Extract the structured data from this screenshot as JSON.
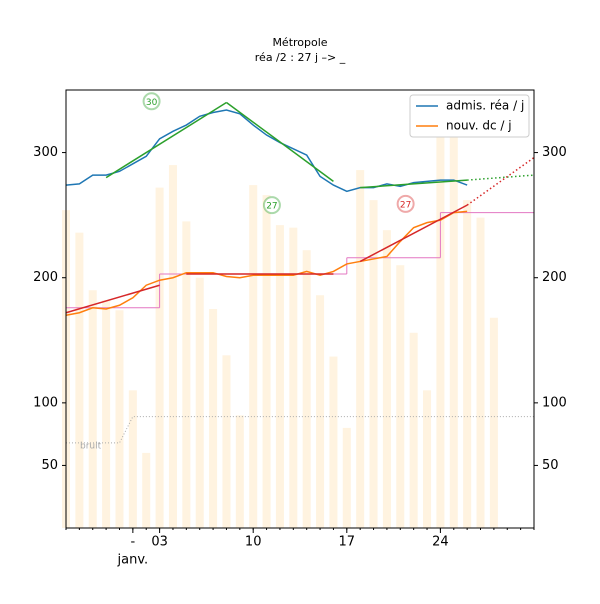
{
  "chart_data": {
    "type": "line",
    "title": "Métropole",
    "subtitle": "réa /2 : 27 j –> _",
    "xlim": [
      -4,
      31
    ],
    "ylim": [
      0,
      350
    ],
    "xticks": [
      {
        "value": 1,
        "label": "-"
      },
      {
        "value": 3,
        "label": "03"
      },
      10,
      17,
      24
    ],
    "x_sublabel": "janv.",
    "yticks": [
      50,
      100,
      200,
      300
    ],
    "y2ticks": [
      50,
      100,
      200,
      300
    ],
    "legend": "upper right",
    "x": [
      -4,
      -3,
      -2,
      -1,
      0,
      1,
      2,
      3,
      4,
      5,
      6,
      7,
      8,
      9,
      10,
      11,
      12,
      13,
      14,
      15,
      16,
      17,
      18,
      19,
      20,
      21,
      22,
      23,
      24,
      25,
      26
    ],
    "series": [
      {
        "name": "admis. réa / j",
        "color": "#1f77b4",
        "values": [
          274,
          275,
          282,
          282,
          285,
          291,
          297,
          311,
          317,
          322,
          329,
          332,
          334,
          331,
          322,
          314,
          308,
          303,
          298,
          281,
          274,
          269,
          272,
          272,
          275,
          273,
          276,
          277,
          278,
          278,
          274
        ]
      },
      {
        "name": "nouv. dc / j",
        "color": "#ff7f0e",
        "values": [
          170,
          172,
          176,
          175,
          178,
          184,
          194,
          198,
          200,
          204,
          204,
          204,
          201,
          200,
          202,
          202,
          202,
          202,
          205,
          202,
          205,
          211,
          213,
          215,
          217,
          229,
          240,
          244,
          246,
          252,
          253
        ]
      }
    ],
    "bars": {
      "color": "#fff3e0",
      "x": [
        -4,
        -3,
        -2,
        -1,
        0,
        1,
        2,
        3,
        4,
        5,
        6,
        7,
        8,
        9,
        10,
        11,
        12,
        13,
        14,
        15,
        16,
        17,
        18,
        19,
        20,
        21,
        22,
        23,
        24,
        25,
        26,
        27,
        28
      ],
      "values": [
        254,
        236,
        190,
        182,
        174,
        110,
        60,
        272,
        290,
        245,
        200,
        175,
        138,
        90,
        274,
        266,
        242,
        240,
        222,
        186,
        137,
        80,
        286,
        262,
        238,
        210,
        156,
        110,
        318,
        318,
        262,
        248,
        168
      ]
    },
    "fit_lines": [
      {
        "color": "#2ca02c",
        "style": "solid",
        "x": [
          -1,
          8
        ],
        "values": [
          280,
          340
        ]
      },
      {
        "color": "#2ca02c",
        "style": "solid",
        "x": [
          8,
          16
        ],
        "values": [
          340,
          277
        ]
      },
      {
        "color": "#2ca02c",
        "style": "solid",
        "x": [
          18,
          26
        ],
        "values": [
          272,
          278
        ]
      },
      {
        "color": "#2ca02c",
        "style": "dotted",
        "x": [
          26,
          31
        ],
        "values": [
          278,
          282
        ]
      },
      {
        "color": "#d62728",
        "style": "solid",
        "x": [
          -4,
          3
        ],
        "values": [
          172,
          194
        ]
      },
      {
        "color": "#d62728",
        "style": "solid",
        "x": [
          5,
          16
        ],
        "values": [
          203,
          203
        ]
      },
      {
        "color": "#d62728",
        "style": "solid",
        "x": [
          18,
          26
        ],
        "values": [
          213,
          258
        ]
      },
      {
        "color": "#d62728",
        "style": "dotted",
        "x": [
          26,
          31
        ],
        "values": [
          258,
          296
        ]
      }
    ],
    "steps": {
      "color": "#e377c2",
      "edges": [
        -4,
        3,
        17,
        24,
        31
      ],
      "values": [
        176,
        203,
        216,
        252
      ]
    },
    "noise": {
      "label": "bruit",
      "color": "#aaaaaa",
      "x": [
        -4,
        0,
        1,
        31
      ],
      "values": [
        68,
        68,
        89,
        89
      ]
    },
    "annotations": [
      {
        "text": "30",
        "color": "#2ca02c",
        "x": 2.4,
        "y": 341
      },
      {
        "text": "27",
        "color": "#2ca02c",
        "x": 11.4,
        "y": 258
      },
      {
        "text": "27",
        "color": "#d62728",
        "x": 21.4,
        "y": 259
      }
    ]
  }
}
